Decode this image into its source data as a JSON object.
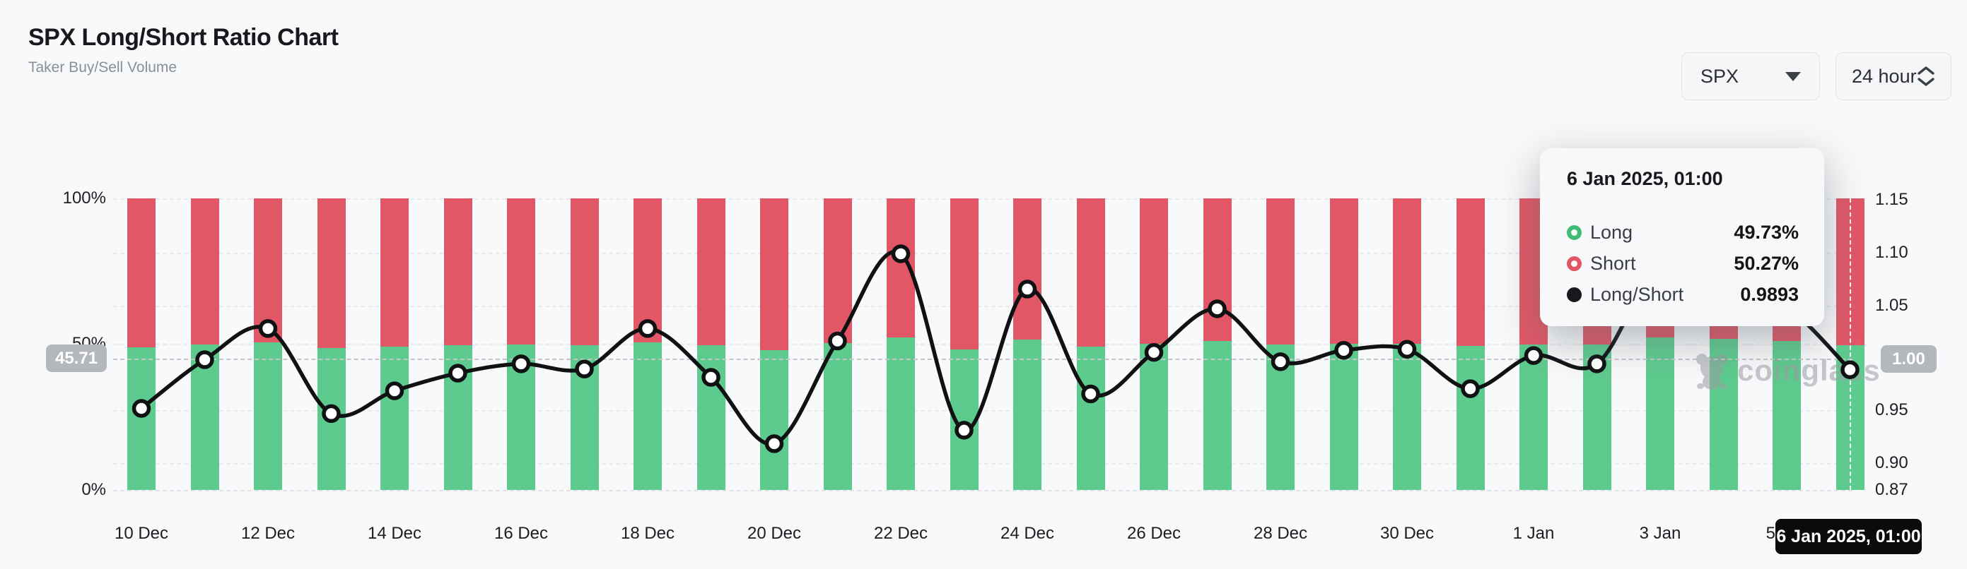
{
  "header": {
    "title": "SPX Long/Short Ratio Chart",
    "subtitle": "Taker Buy/Sell Volume"
  },
  "controls": {
    "symbol": "SPX",
    "interval": "24 hour"
  },
  "axes": {
    "left_ticks": [
      {
        "label": "100%",
        "y": 281
      },
      {
        "label": "50%",
        "y": 487
      },
      {
        "label": "0%",
        "y": 694
      }
    ],
    "right_ticks": [
      {
        "label": "1.15",
        "y": 283
      },
      {
        "label": "1.10",
        "y": 358
      },
      {
        "label": "1.05",
        "y": 433
      },
      {
        "label": "0.95",
        "y": 581
      },
      {
        "label": "0.90",
        "y": 656
      },
      {
        "label": "0.87",
        "y": 694
      }
    ],
    "left_badge": "45.71",
    "right_badge": "1.00",
    "x_tick_labels": [
      "10 Dec",
      "12 Dec",
      "14 Dec",
      "16 Dec",
      "18 Dec",
      "20 Dec",
      "22 Dec",
      "24 Dec",
      "26 Dec",
      "28 Dec",
      "30 Dec",
      "1 Jan",
      "3 Jan",
      "5 Jan"
    ]
  },
  "tooltip": {
    "title": "6 Jan 2025, 01:00",
    "rows": [
      {
        "label": "Long",
        "value": "49.73%",
        "dot": "green"
      },
      {
        "label": "Short",
        "value": "50.27%",
        "dot": "red"
      },
      {
        "label": "Long/Short",
        "value": "0.9893",
        "dot": "black"
      }
    ]
  },
  "x_axis_tooltip": "6 Jan 2025, 01:00",
  "watermark": "coinglass",
  "colors": {
    "long_green": "#5ecb8e",
    "short_red": "#e25766",
    "line_black": "#101113",
    "badge_gray": "#b4b7bc",
    "background": "#f8f9fa"
  },
  "chart_data": {
    "type": "bar",
    "subtype": "stacked-bars-with-line-overlay",
    "title": "SPX Long/Short Ratio Chart",
    "categories": [
      "10 Dec",
      "11 Dec",
      "12 Dec",
      "13 Dec",
      "14 Dec",
      "15 Dec",
      "16 Dec",
      "17 Dec",
      "18 Dec",
      "19 Dec",
      "20 Dec",
      "21 Dec",
      "22 Dec",
      "23 Dec",
      "24 Dec",
      "25 Dec",
      "26 Dec",
      "27 Dec",
      "28 Dec",
      "29 Dec",
      "30 Dec",
      "31 Dec",
      "1 Jan",
      "2 Jan",
      "3 Jan",
      "4 Jan",
      "5 Jan",
      "6 Jan"
    ],
    "series": [
      {
        "name": "Long",
        "type": "bar",
        "axis": "left",
        "unit": "%",
        "color": "#5ecb8e",
        "values": [
          48.8,
          49.9,
          50.7,
          48.7,
          49.2,
          49.7,
          49.9,
          49.7,
          50.7,
          49.6,
          47.9,
          50.4,
          52.4,
          48.2,
          51.6,
          49.1,
          50.2,
          51.2,
          49.9,
          50.2,
          50.2,
          49.3,
          50.0,
          49.9,
          52.2,
          51.7,
          51.2,
          49.73
        ]
      },
      {
        "name": "Short",
        "type": "bar",
        "axis": "left",
        "unit": "%",
        "color": "#e25766",
        "values": [
          51.2,
          50.1,
          49.3,
          51.3,
          50.8,
          50.3,
          50.1,
          50.3,
          49.3,
          50.4,
          52.1,
          49.6,
          47.6,
          51.8,
          48.4,
          50.9,
          49.8,
          48.8,
          50.1,
          49.8,
          49.8,
          50.7,
          50.0,
          50.1,
          47.8,
          48.3,
          48.8,
          50.27
        ]
      },
      {
        "name": "Long/Short",
        "type": "line",
        "axis": "right",
        "color": "#101113",
        "values": [
          0.952,
          0.999,
          1.029,
          0.947,
          0.969,
          0.986,
          0.995,
          0.99,
          1.029,
          0.982,
          0.918,
          1.017,
          1.101,
          0.931,
          1.067,
          0.966,
          1.006,
          1.048,
          0.997,
          1.008,
          1.009,
          0.971,
          1.003,
          0.995,
          1.09,
          1.072,
          1.05,
          0.9893
        ]
      }
    ],
    "left_axis": {
      "range": [
        0,
        100
      ],
      "ticks": [
        "0%",
        "50%",
        "100%"
      ]
    },
    "right_axis": {
      "range": [
        0.87,
        1.157
      ],
      "ticks": [
        0.87,
        0.9,
        0.95,
        1.0,
        1.05,
        1.1,
        1.15
      ]
    },
    "reference_line": {
      "right_value": 1.0,
      "left_value": 45.71
    },
    "highlighted_point": {
      "category": "6 Jan",
      "long": 49.73,
      "short": 50.27,
      "ratio": 0.9893
    },
    "grid": "dashed-horizontal",
    "legend_position": "none"
  }
}
